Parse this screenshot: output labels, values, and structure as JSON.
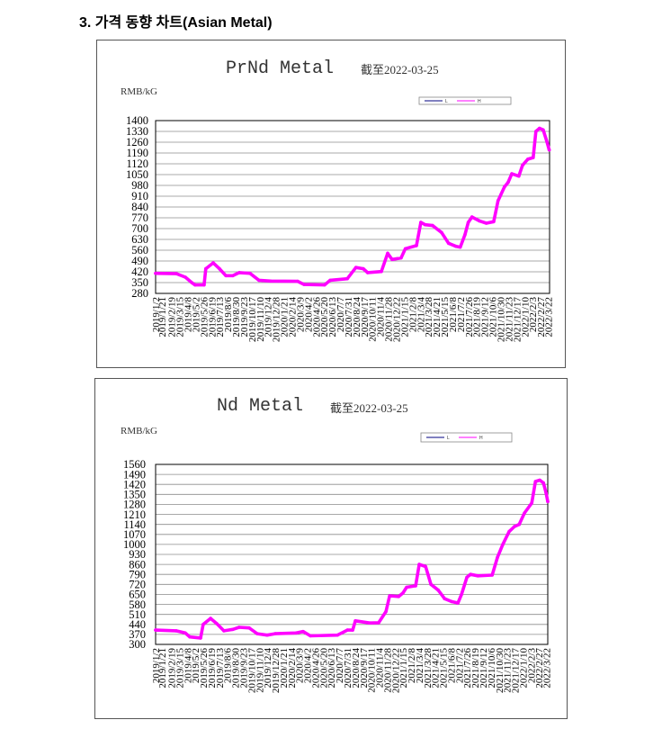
{
  "heading": "3. 가격 동향 차트(Asian Metal)",
  "chart_data": [
    {
      "type": "line",
      "title": "PrNd Metal",
      "subtitle": "截至2022-03-25",
      "ylabel": "RMB/kG",
      "xlabel": "",
      "ylim": [
        280,
        1400
      ],
      "xlim": [
        "2019-01-02",
        "2022-03-25"
      ],
      "grid": true,
      "legend": "top-right",
      "y_ticks": [
        1400,
        1330,
        1260,
        1190,
        1120,
        1050,
        980,
        910,
        840,
        770,
        700,
        630,
        560,
        490,
        420,
        350,
        280
      ],
      "x_tick_labels": [
        "2019/1/2",
        "2019/1/21",
        "2019/2/19",
        "2019/3/15",
        "2019/4/8",
        "2019/5/2",
        "2019/5/26",
        "2019/6/19",
        "2019/7/13",
        "2019/8/6",
        "2019/8/30",
        "2019/9/23",
        "2019/10/17",
        "2019/11/10",
        "2019/12/4",
        "2019/12/28",
        "2020/1/21",
        "2020/2/14",
        "2020/3/9",
        "2020/4/2",
        "2020/4/26",
        "2020/5/20",
        "2020/6/13",
        "2020/7/7",
        "2020/7/31",
        "2020/8/24",
        "2020/9/17",
        "2020/10/11",
        "2020/11/4",
        "2020/11/28",
        "2020/12/22",
        "2021/1/15",
        "2021/2/8",
        "2021/3/4",
        "2021/3/28",
        "2021/4/21",
        "2021/5/15",
        "2021/6/8",
        "2021/7/2",
        "2021/7/26",
        "2021/8/19",
        "2021/9/12",
        "2021/10/6",
        "2021/10/30",
        "2021/11/23",
        "2021/12/17",
        "2022/1/10",
        "2022/2/3",
        "2022/2/27",
        "2022/3/22"
      ],
      "x": [
        "2019-01-02",
        "2019-03-05",
        "2019-04-01",
        "2019-04-20",
        "2019-04-30",
        "2019-05-27",
        "2019-06-01",
        "2019-06-23",
        "2019-07-12",
        "2019-07-31",
        "2019-08-21",
        "2019-09-09",
        "2019-10-11",
        "2019-11-07",
        "2019-12-12",
        "2020-03-02",
        "2020-03-21",
        "2020-05-21",
        "2020-06-07",
        "2020-07-28",
        "2020-08-23",
        "2020-09-14",
        "2020-09-27",
        "2020-11-07",
        "2020-11-26",
        "2020-12-09",
        "2021-01-05",
        "2021-01-18",
        "2021-02-20",
        "2021-03-05",
        "2021-03-18",
        "2021-04-09",
        "2021-05-06",
        "2021-05-27",
        "2021-06-18",
        "2021-07-01",
        "2021-07-15",
        "2021-07-25",
        "2021-08-05",
        "2021-08-27",
        "2021-09-17",
        "2021-10-09",
        "2021-10-22",
        "2021-11-10",
        "2021-11-21",
        "2021-12-02",
        "2021-12-23",
        "2022-01-03",
        "2022-01-19",
        "2022-02-04",
        "2022-02-12",
        "2022-02-23",
        "2022-03-06",
        "2022-03-16",
        "2022-03-24"
      ],
      "series": [
        {
          "name": "L",
          "color": "#000080",
          "values": [
            410,
            408,
            385,
            350,
            335,
            335,
            440,
            478,
            440,
            395,
            395,
            415,
            410,
            365,
            360,
            358,
            338,
            335,
            365,
            375,
            448,
            440,
            415,
            422,
            540,
            500,
            510,
            570,
            590,
            740,
            725,
            720,
            675,
            605,
            585,
            580,
            660,
            740,
            775,
            750,
            735,
            745,
            880,
            970,
            1000,
            1055,
            1040,
            1110,
            1150,
            1160,
            1330,
            1350,
            1340,
            1270,
            1210
          ]
        },
        {
          "name": "H",
          "color": "#ff00ff",
          "values": [
            410,
            408,
            385,
            350,
            335,
            335,
            440,
            478,
            440,
            395,
            395,
            415,
            410,
            365,
            360,
            358,
            338,
            335,
            365,
            375,
            448,
            440,
            415,
            422,
            540,
            500,
            510,
            570,
            590,
            740,
            725,
            720,
            675,
            605,
            585,
            580,
            660,
            740,
            775,
            750,
            735,
            745,
            880,
            970,
            1000,
            1055,
            1040,
            1110,
            1150,
            1160,
            1330,
            1350,
            1340,
            1270,
            1210
          ]
        }
      ]
    },
    {
      "type": "line",
      "title": "Nd Metal",
      "subtitle": "截至2022-03-25",
      "ylabel": "RMB/kG",
      "xlabel": "",
      "ylim": [
        300,
        1560
      ],
      "xlim": [
        "2019-01-02",
        "2022-03-25"
      ],
      "grid": true,
      "legend": "top-right",
      "y_ticks": [
        1560,
        1490,
        1420,
        1350,
        1280,
        1210,
        1140,
        1070,
        1000,
        930,
        860,
        790,
        720,
        650,
        580,
        510,
        440,
        370,
        300
      ],
      "x_tick_labels": [
        "2019/1/2",
        "2019/1/21",
        "2019/2/19",
        "2019/3/15",
        "2019/4/8",
        "2019/5/2",
        "2019/5/26",
        "2019/6/19",
        "2019/7/13",
        "2019/8/6",
        "2019/8/30",
        "2019/9/23",
        "2019/10/17",
        "2019/11/10",
        "2019/12/4",
        "2019/12/28",
        "2020/1/21",
        "2020/2/14",
        "2020/3/9",
        "2020/4/2",
        "2020/4/26",
        "2020/5/20",
        "2020/6/13",
        "2020/7/7",
        "2020/7/31",
        "2020/8/24",
        "2020/9/17",
        "2020/10/11",
        "2020/11/4",
        "2020/11/28",
        "2020/12/22",
        "2021/1/15",
        "2021/2/8",
        "2021/3/4",
        "2021/3/28",
        "2021/4/21",
        "2021/5/15",
        "2021/6/8",
        "2021/7/2",
        "2021/7/26",
        "2021/8/19",
        "2021/9/12",
        "2021/10/6",
        "2021/10/30",
        "2021/11/23",
        "2021/12/17",
        "2022/1/10",
        "2022/2/3",
        "2022/2/27",
        "2022/3/22"
      ],
      "x": [
        "2019-01-02",
        "2019-03-05",
        "2019-04-01",
        "2019-04-15",
        "2019-05-17",
        "2019-05-25",
        "2019-06-16",
        "2019-07-05",
        "2019-07-26",
        "2019-08-22",
        "2019-09-10",
        "2019-10-10",
        "2019-11-03",
        "2019-12-03",
        "2019-12-27",
        "2020-02-28",
        "2020-03-20",
        "2020-04-11",
        "2020-07-01",
        "2020-07-31",
        "2020-08-16",
        "2020-08-24",
        "2020-10-06",
        "2020-11-02",
        "2020-11-24",
        "2020-12-05",
        "2021-01-01",
        "2021-01-14",
        "2021-01-25",
        "2021-02-21",
        "2021-03-04",
        "2021-03-23",
        "2021-04-08",
        "2021-04-30",
        "2021-05-19",
        "2021-06-09",
        "2021-06-28",
        "2021-07-09",
        "2021-07-25",
        "2021-08-05",
        "2021-08-27",
        "2021-10-09",
        "2021-10-25",
        "2021-11-10",
        "2021-11-29",
        "2021-12-15",
        "2021-12-29",
        "2022-01-14",
        "2022-02-05",
        "2022-02-16",
        "2022-03-01",
        "2022-03-12",
        "2022-03-20",
        "2022-03-25"
      ],
      "series": [
        {
          "name": "L",
          "color": "#000080",
          "values": [
            400,
            395,
            380,
            352,
            345,
            440,
            482,
            445,
            395,
            405,
            420,
            415,
            375,
            365,
            375,
            380,
            390,
            360,
            365,
            400,
            400,
            465,
            450,
            452,
            530,
            640,
            635,
            660,
            700,
            710,
            860,
            845,
            720,
            680,
            620,
            600,
            590,
            650,
            770,
            790,
            780,
            785,
            910,
            1000,
            1090,
            1125,
            1140,
            1220,
            1290,
            1440,
            1450,
            1430,
            1360,
            1300
          ]
        },
        {
          "name": "H",
          "color": "#ff00ff",
          "values": [
            400,
            395,
            380,
            352,
            345,
            440,
            482,
            445,
            395,
            405,
            420,
            415,
            375,
            365,
            375,
            380,
            390,
            360,
            365,
            400,
            400,
            465,
            450,
            452,
            530,
            640,
            635,
            660,
            700,
            710,
            860,
            845,
            720,
            680,
            620,
            600,
            590,
            650,
            770,
            790,
            780,
            785,
            910,
            1000,
            1090,
            1125,
            1140,
            1220,
            1290,
            1440,
            1450,
            1430,
            1360,
            1300
          ]
        }
      ]
    }
  ]
}
